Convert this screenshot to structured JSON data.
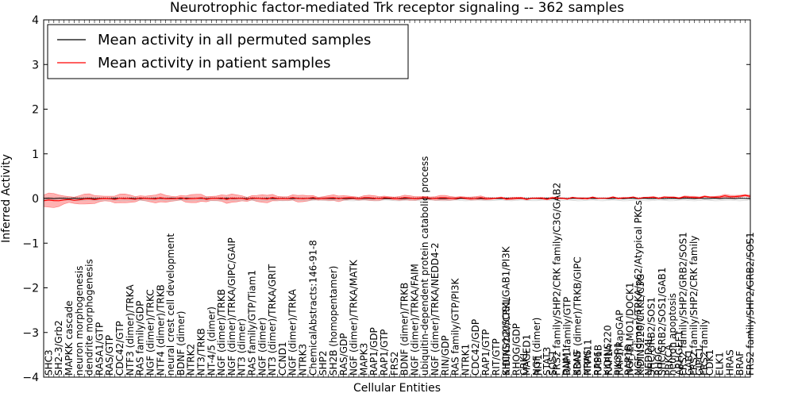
{
  "chart_data": {
    "type": "line",
    "title": "Neurotrophic factor-mediated Trk receptor signaling -- 362 samples",
    "xlabel": "Cellular Entities",
    "ylabel": "Inferred Activity",
    "ylim": [
      -4,
      4
    ],
    "yticks": [
      "4",
      "3",
      "2",
      "1",
      "0",
      "−1",
      "−2",
      "−3",
      "−4"
    ],
    "legend": {
      "placement": "top-left",
      "entries": [
        {
          "label": "Mean activity in all permuted samples",
          "color": "#000000"
        },
        {
          "label": "Mean activity in patient samples",
          "color": "#ff0000"
        }
      ]
    },
    "n_points": 140,
    "patient_mean": {
      "knots": [
        [
          0,
          -0.05
        ],
        [
          6,
          -0.03
        ],
        [
          10,
          -0.01
        ],
        [
          20,
          0.0
        ],
        [
          40,
          0.0
        ],
        [
          60,
          0.01
        ],
        [
          80,
          0.01
        ],
        [
          95,
          0.0
        ],
        [
          110,
          0.01
        ],
        [
          120,
          0.02
        ],
        [
          130,
          0.03
        ],
        [
          139,
          0.06
        ]
      ]
    },
    "patient_band": {
      "color": "#ff0000",
      "half_width_knots": [
        [
          0,
          0.13
        ],
        [
          5,
          0.1
        ],
        [
          10,
          0.08
        ],
        [
          20,
          0.07
        ],
        [
          40,
          0.07
        ],
        [
          55,
          0.05
        ],
        [
          70,
          0.04
        ],
        [
          80,
          0.04
        ],
        [
          90,
          0.02
        ],
        [
          110,
          0.01
        ],
        [
          120,
          0.01
        ],
        [
          130,
          0.02
        ],
        [
          139,
          0.03
        ]
      ]
    },
    "permuted_mean": {
      "knots": [
        [
          0,
          0.0
        ],
        [
          139,
          0.0
        ]
      ]
    },
    "x_labels": [
      {
        "i": 1,
        "text": "SHC3"
      },
      {
        "i": 3,
        "text": "SH2-3/Grb2"
      },
      {
        "i": 5,
        "text": "MAPKK cascade"
      },
      {
        "i": 7,
        "text": "neuron morphogenesis"
      },
      {
        "i": 9,
        "text": "dendrite morphogenesis"
      },
      {
        "i": 11,
        "text": "RASA1/GTP"
      },
      {
        "i": 13,
        "text": "RAS/GTP"
      },
      {
        "i": 15,
        "text": "CDC42/GTP"
      },
      {
        "i": 17,
        "text": "NTF3 (dimer)/TRKA"
      },
      {
        "i": 19,
        "text": "RAS family/GDP"
      },
      {
        "i": 21,
        "text": "NGF (dimer)/TRKC"
      },
      {
        "i": 23,
        "text": "NTF4 (dimer)/TRKB"
      },
      {
        "i": 25,
        "text": "neural crest cell development"
      },
      {
        "i": 27,
        "text": "BDNF (dimer)"
      },
      {
        "i": 29,
        "text": "NTRK2"
      },
      {
        "i": 31,
        "text": "NT3/TRKB"
      },
      {
        "i": 33,
        "text": "NT-4/5 (dimer)"
      },
      {
        "i": 35,
        "text": "NGF (dimer)/TRKB"
      },
      {
        "i": 37,
        "text": "NGF (dimer)/TRKA/GIPC/GAIP"
      },
      {
        "i": 39,
        "text": "NT3 (dimer)"
      },
      {
        "i": 41,
        "text": "RAS family/GTP/Tiam1"
      },
      {
        "i": 43,
        "text": "NGF (dimer)"
      },
      {
        "i": 45,
        "text": "NT3 (dimer)/TRKA/GRIT"
      },
      {
        "i": 47,
        "text": "CCND1"
      },
      {
        "i": 49,
        "text": "NGF (dimer)/TRKA"
      },
      {
        "i": 51,
        "text": "NTRK3"
      },
      {
        "i": 53,
        "text": "ChemicalAbstracts:146-91-8"
      },
      {
        "i": 55,
        "text": "SHP2"
      },
      {
        "i": 57,
        "text": "SH2B (homopentamer)"
      },
      {
        "i": 59,
        "text": "RAS/GDP"
      },
      {
        "i": 61,
        "text": "NGF (dimer)/TRKA/MATK"
      },
      {
        "i": 63,
        "text": "MAPK3"
      },
      {
        "i": 65,
        "text": "RAP1/GDP"
      },
      {
        "i": 67,
        "text": "RAP1/GTP"
      },
      {
        "i": 69,
        "text": "FRS2"
      },
      {
        "i": 71,
        "text": "BDNF (dimer)/TRKB"
      },
      {
        "i": 73,
        "text": "NGF (dimer)/TRKA/FAIM"
      },
      {
        "i": 75,
        "text": "ubiquitin-dependent protein catabolic process"
      },
      {
        "i": 77,
        "text": "NGF (dimer)/TRKA/NEDD4-2"
      },
      {
        "i": 79,
        "text": "RIN/GDP"
      },
      {
        "i": 81,
        "text": "RAS family/GTP/PI3K"
      },
      {
        "i": 83,
        "text": "NTRK1"
      },
      {
        "i": 85,
        "text": "CDC42/GDP"
      },
      {
        "i": 87,
        "text": "RAP1/GTP"
      },
      {
        "i": 89,
        "text": "RIT/GTP"
      },
      {
        "i": 91,
        "text": "SHC/Grb2/SOS1/GAB1/PI3K"
      },
      {
        "i": 93,
        "text": "RHOG/GDP"
      },
      {
        "i": 95,
        "text": "MAGED1"
      },
      {
        "i": 97,
        "text": "NGF (dimer)"
      },
      {
        "i": 99,
        "text": "STAT3"
      },
      {
        "i": 101,
        "text": "FRS2 family/SHP2/CRK family/C3G/GAB2"
      },
      {
        "i": 103,
        "text": "RAP1 family/GTP"
      },
      {
        "i": 105,
        "text": "BDNF (dimer)/TRKB/GIPC"
      },
      {
        "i": 107,
        "text": "NRAS"
      },
      {
        "i": 109,
        "text": "RPS6"
      },
      {
        "i": 111,
        "text": "KIDINS220"
      },
      {
        "i": 113,
        "text": "PIK3R1"
      },
      {
        "i": 115,
        "text": "RAP1B"
      },
      {
        "i": 117,
        "text": "NGF (dimer)/TRKA/p62/Atypical PKCs"
      },
      {
        "i": 119,
        "text": "NEDD4L"
      },
      {
        "i": 121,
        "text": "RHOG"
      },
      {
        "i": 123,
        "text": "PRKCA"
      },
      {
        "i": 125,
        "text": "ARHGEF1"
      },
      {
        "i": 127,
        "text": "GAB1"
      },
      {
        "i": 129,
        "text": "GIPC1"
      },
      {
        "i": 131,
        "text": "CDK1"
      },
      {
        "i": 133,
        "text": "ELK1"
      },
      {
        "i": 135,
        "text": "HRAS"
      },
      {
        "i": 137,
        "text": "BRAF"
      },
      {
        "i": 139,
        "text": "FRS2 family/SHP2/GRB2/SOS1"
      }
    ],
    "x_labels_right": [
      {
        "x_fraction": 0.655,
        "text": "KIDINS220/CRKL"
      },
      {
        "x_fraction": 0.68,
        "text": "CRKL"
      },
      {
        "x_fraction": 0.7,
        "text": "RIT1"
      },
      {
        "x_fraction": 0.72,
        "text": "SOS1"
      },
      {
        "x_fraction": 0.74,
        "text": "DNM1"
      },
      {
        "x_fraction": 0.755,
        "text": "KRAS"
      },
      {
        "x_fraction": 0.77,
        "text": "PTPN11"
      },
      {
        "x_fraction": 0.785,
        "text": "RAP1B"
      },
      {
        "x_fraction": 0.8,
        "text": "RAP1A"
      },
      {
        "x_fraction": 0.815,
        "text": "RAP1/RapGAP"
      },
      {
        "x_fraction": 0.83,
        "text": "NGF/ELMO1/DOCK1"
      },
      {
        "x_fraction": 0.845,
        "text": "KIDINS220/CRKL/C3G"
      },
      {
        "x_fraction": 0.86,
        "text": "SHC/GRB2/SOS1"
      },
      {
        "x_fraction": 0.875,
        "text": "SHC/GRB2/SOS1/GAB1"
      },
      {
        "x_fraction": 0.89,
        "text": "neuron apoptosis"
      },
      {
        "x_fraction": 0.905,
        "text": "FRS2 family/SHP2/GRB2/SOS1"
      },
      {
        "x_fraction": 0.92,
        "text": "FRS2 family/SHP2/CRK family"
      },
      {
        "x_fraction": 0.935,
        "text": "FRS2 family"
      }
    ]
  }
}
